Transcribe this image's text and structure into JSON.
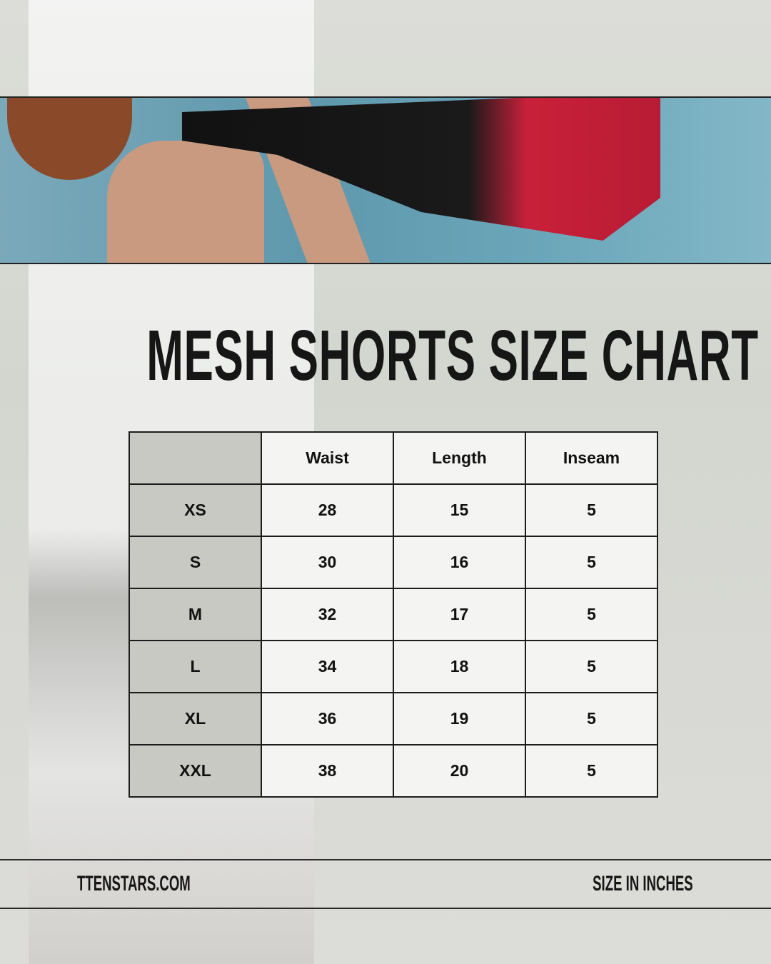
{
  "title": "MESH SHORTS SIZE CHART",
  "table": {
    "headers": [
      "",
      "Waist",
      "Length",
      "Inseam"
    ],
    "rows": [
      [
        "XS",
        "28",
        "15",
        "5"
      ],
      [
        "S",
        "30",
        "16",
        "5"
      ],
      [
        "M",
        "32",
        "17",
        "5"
      ],
      [
        "L",
        "34",
        "18",
        "5"
      ],
      [
        "XL",
        "36",
        "19",
        "5"
      ],
      [
        "XXL",
        "38",
        "20",
        "5"
      ]
    ]
  },
  "footer": {
    "website": "TTENSTARS.COM",
    "units_note": "SIZE IN INCHES"
  },
  "colors": {
    "row_header_bg": "#c8c9c2",
    "cell_bg": "#f4f4f2",
    "text": "#161616"
  }
}
